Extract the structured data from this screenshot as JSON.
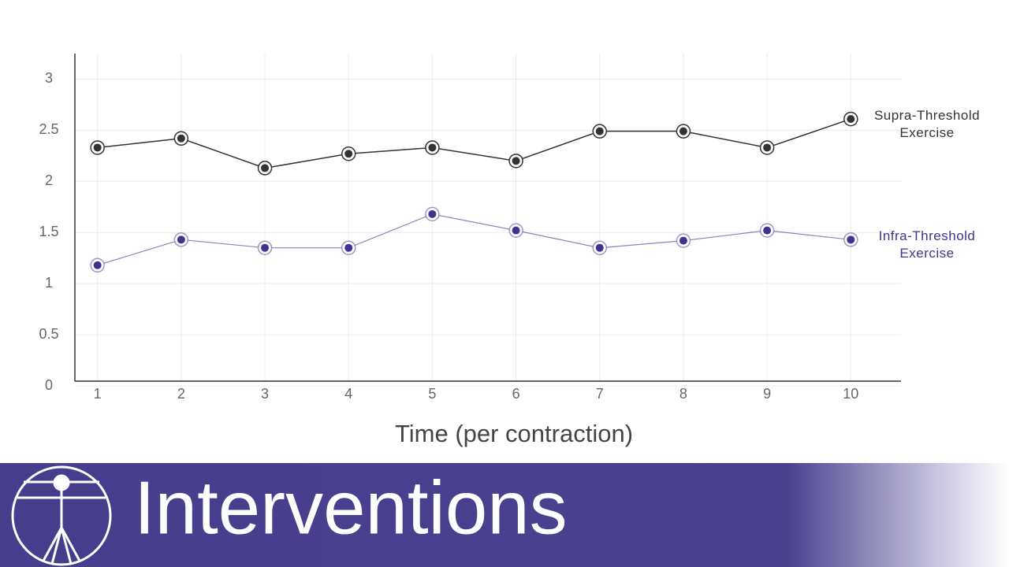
{
  "chart_data": {
    "type": "line",
    "x_label": "Time (per contraction)",
    "x": [
      1,
      2,
      3,
      4,
      5,
      6,
      7,
      8,
      9,
      10
    ],
    "xlim": [
      0.73,
      10.6
    ],
    "xticks": [
      1,
      2,
      3,
      4,
      5,
      6,
      7,
      8,
      9,
      10
    ],
    "ylim": [
      0,
      3.25
    ],
    "yticks": [
      0,
      0.5,
      1,
      1.5,
      2,
      2.5,
      3
    ],
    "grid": true,
    "series": [
      {
        "name": "Supra-Threshold Exercise",
        "color": "#333333",
        "values": [
          2.33,
          2.42,
          2.13,
          2.27,
          2.33,
          2.2,
          2.49,
          2.49,
          2.33,
          2.61
        ]
      },
      {
        "name": "Infra-Threshold Exercise",
        "color": "#3f3391",
        "values": [
          1.18,
          1.43,
          1.35,
          1.35,
          1.68,
          1.52,
          1.35,
          1.42,
          1.52,
          1.43
        ]
      }
    ]
  },
  "banner": {
    "title": "Interventions"
  }
}
